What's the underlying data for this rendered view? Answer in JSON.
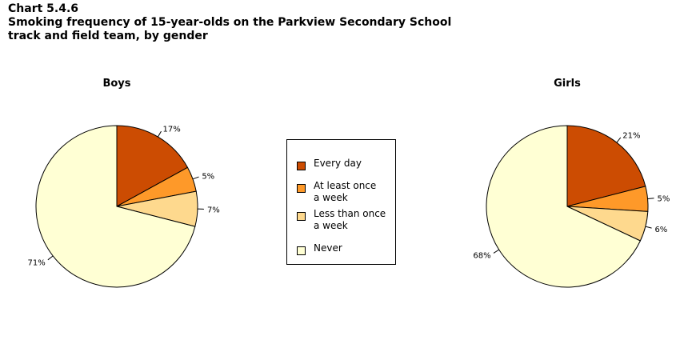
{
  "header": {
    "chart_number": "Chart 5.4.6",
    "title_line1": "Smoking frequency of 15-year-olds on the Parkview Secondary School",
    "title_line2": "track and field team, by gender"
  },
  "colors": {
    "every_day": "#CC4C02",
    "at_least_once": "#FE9929",
    "less_than_once": "#FED98E",
    "never": "#FFFFD4"
  },
  "chart_data": [
    {
      "type": "pie",
      "title": "Boys",
      "labels": [
        "Every day",
        "At least once a week",
        "Less than once a week",
        "Never"
      ],
      "values": [
        17,
        5,
        7,
        71
      ],
      "value_labels": [
        "17%",
        "5%",
        "7%",
        "71%"
      ]
    },
    {
      "type": "pie",
      "title": "Girls",
      "labels": [
        "Every day",
        "At least once a week",
        "Less than once a week",
        "Never"
      ],
      "values": [
        21,
        5,
        6,
        68
      ],
      "value_labels": [
        "21%",
        "5%",
        "6%",
        "68%"
      ]
    }
  ],
  "legend": {
    "items": [
      {
        "line1": "Every day",
        "line2": ""
      },
      {
        "line1": "At least once",
        "line2": "a week"
      },
      {
        "line1": "Less than once",
        "line2": "a week"
      },
      {
        "line1": "Never",
        "line2": ""
      }
    ]
  }
}
